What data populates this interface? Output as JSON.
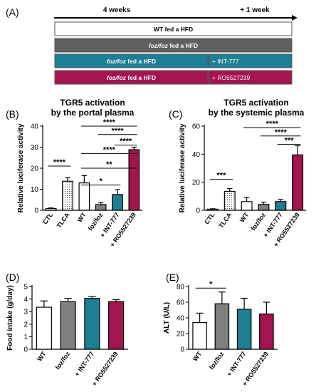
{
  "colors": {
    "white": "#ffffff",
    "grey": "#7f7f7f",
    "teal": "#1d7f94",
    "magenta": "#a3154f",
    "dark_grey": "#606060",
    "dotted": "#dedede"
  },
  "panel_a": {
    "label": "(A)",
    "timeline_left": "4 weeks",
    "timeline_right": "+ 1 week",
    "bars": [
      {
        "text": "WT fed a HFD",
        "fill": "white",
        "italic_prefix": ""
      },
      {
        "text": " fed a HFD",
        "fill": "dark_grey",
        "italic_prefix": "foz/foz"
      },
      {
        "text": " fed a HFD",
        "fill": "teal",
        "italic_prefix": "foz/foz",
        "extra": "+ INT-777"
      },
      {
        "text": " fed a HFD",
        "fill": "magenta",
        "italic_prefix": "foz/foz",
        "extra": "+ RO5527239"
      }
    ]
  },
  "chart_data": [
    {
      "panel": "(B)",
      "type": "bar",
      "title": "TGR5 activation\nby the portal plasma",
      "ylabel": "Relative luciferase activity",
      "ylim": [
        0,
        40
      ],
      "yticks": [
        0,
        10,
        20,
        30,
        40
      ],
      "categories": [
        "CTL",
        "TLCA",
        "WT",
        "foz/foz",
        "+ INT-777",
        "+ RO5527239"
      ],
      "values": [
        0.8,
        13.8,
        13.0,
        2.7,
        7.5,
        28.8
      ],
      "errors": [
        0.3,
        1.7,
        3.5,
        1.0,
        2.3,
        1.2
      ],
      "fills": [
        "white",
        "dotted",
        "white",
        "grey",
        "teal",
        "magenta"
      ],
      "significance": [
        {
          "from": 0,
          "to": 1,
          "label": "****",
          "y": 21
        },
        {
          "from": 2,
          "to": 4,
          "label": "*",
          "y": 12
        },
        {
          "from": 2,
          "to": 5,
          "label": "**",
          "y": 20
        },
        {
          "from": 2,
          "to": 5,
          "label": "****",
          "y": 27
        },
        {
          "from": 3,
          "to": 5,
          "label": "****",
          "y": 36
        },
        {
          "from": 4,
          "to": 5,
          "label": "****",
          "y": 31
        },
        {
          "from": 2,
          "to": 5,
          "label": "****",
          "y": 40
        }
      ]
    },
    {
      "panel": "(C)",
      "type": "bar",
      "title": "TGR5 activation\nby the systemic plasma",
      "ylabel": "Relative luciferase activity",
      "ylim": [
        0,
        60
      ],
      "yticks": [
        0,
        20,
        40,
        60
      ],
      "categories": [
        "CTL",
        "TLCA",
        "WT",
        "foz/foz",
        "+ INT-777",
        "+ RO5527239"
      ],
      "values": [
        0.8,
        13.5,
        6.2,
        4.2,
        6.2,
        39.5
      ],
      "errors": [
        0.3,
        2.0,
        3.0,
        1.5,
        1.5,
        6.5
      ],
      "fills": [
        "white",
        "dotted",
        "white",
        "grey",
        "teal",
        "magenta"
      ],
      "significance": [
        {
          "from": 0,
          "to": 1,
          "label": "***",
          "y": 22
        },
        {
          "from": 2,
          "to": 5,
          "label": "****",
          "y": 59
        },
        {
          "from": 3,
          "to": 5,
          "label": "****",
          "y": 53
        },
        {
          "from": 4,
          "to": 5,
          "label": "***",
          "y": 47
        }
      ]
    },
    {
      "panel": "(D)",
      "type": "bar",
      "title": "",
      "ylabel": "Food intake (g/day)",
      "ylim": [
        0,
        5
      ],
      "yticks": [
        0,
        1,
        2,
        3,
        4,
        5
      ],
      "categories": [
        "WT",
        "foz/foz",
        "+ INT-777",
        "+ RO5527239"
      ],
      "values": [
        3.35,
        3.8,
        4.05,
        3.8
      ],
      "errors": [
        0.5,
        0.25,
        0.15,
        0.15
      ],
      "fills": [
        "white",
        "grey",
        "teal",
        "magenta"
      ],
      "significance": []
    },
    {
      "panel": "(E)",
      "type": "bar",
      "title": "",
      "ylabel": "ALT (U/L)",
      "ylim": [
        0,
        80
      ],
      "yticks": [
        0,
        20,
        40,
        60,
        80
      ],
      "categories": [
        "WT",
        "foz/foz",
        "+ INT-777",
        "+ RO5527239"
      ],
      "values": [
        34,
        58,
        51,
        45
      ],
      "errors": [
        12,
        15,
        14,
        15
      ],
      "fills": [
        "white",
        "grey",
        "teal",
        "magenta"
      ],
      "significance": [
        {
          "from": 0,
          "to": 1,
          "label": "*",
          "y": 78
        }
      ]
    }
  ]
}
